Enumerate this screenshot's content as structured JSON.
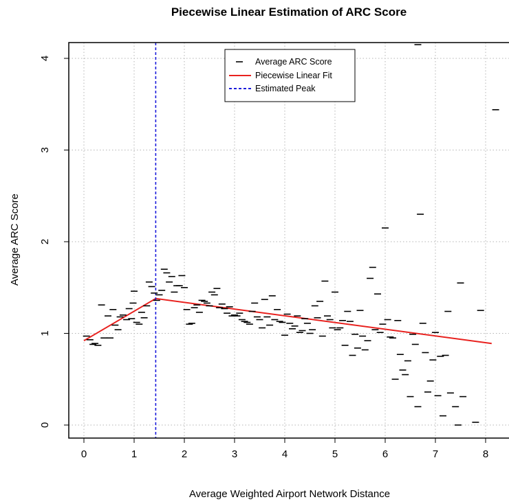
{
  "chart_data": {
    "type": "scatter",
    "title": "Piecewise Linear Estimation of ARC Score",
    "xlabel": "Average Weighted Airport Network Distance",
    "ylabel": "Average ARC Score",
    "xlim": [
      -0.3,
      8.3
    ],
    "ylim": [
      -0.1,
      4.15
    ],
    "x_ticks": [
      0,
      1,
      2,
      3,
      4,
      5,
      6,
      7,
      8
    ],
    "y_ticks": [
      0,
      1,
      2,
      3,
      4
    ],
    "grid": true,
    "legend_position": "top-center",
    "legend": [
      {
        "label": "Average ARC Score",
        "style": "dash-marker",
        "color": "#000000"
      },
      {
        "label": "Piecewise Linear Fit",
        "style": "line",
        "color": "#e8211e"
      },
      {
        "label": "Estimated Peak",
        "style": "dashed-line",
        "color": "#1a1adb"
      }
    ],
    "estimated_peak_x": 1.43,
    "fit_line": {
      "x": [
        0,
        1.43,
        8.12
      ],
      "y": [
        0.92,
        1.38,
        0.89
      ],
      "color": "#e8211e"
    },
    "series": [
      {
        "name": "Average ARC Score",
        "color": "#000000",
        "points": [
          [
            0.05,
            0.97
          ],
          [
            0.12,
            0.93
          ],
          [
            0.18,
            0.88
          ],
          [
            0.22,
            0.89
          ],
          [
            0.28,
            0.87
          ],
          [
            0.35,
            1.31
          ],
          [
            0.4,
            0.95
          ],
          [
            0.48,
            1.19
          ],
          [
            0.52,
            0.95
          ],
          [
            0.58,
            1.26
          ],
          [
            0.62,
            1.09
          ],
          [
            0.68,
            1.04
          ],
          [
            0.72,
            1.18
          ],
          [
            0.78,
            1.2
          ],
          [
            0.85,
            1.15
          ],
          [
            0.9,
            1.27
          ],
          [
            0.95,
            1.16
          ],
          [
            0.98,
            1.33
          ],
          [
            1.0,
            1.46
          ],
          [
            1.05,
            1.12
          ],
          [
            1.1,
            1.1
          ],
          [
            1.15,
            1.23
          ],
          [
            1.2,
            1.17
          ],
          [
            1.25,
            1.3
          ],
          [
            1.3,
            1.56
          ],
          [
            1.35,
            1.51
          ],
          [
            1.4,
            1.44
          ],
          [
            1.45,
            1.36
          ],
          [
            1.5,
            1.42
          ],
          [
            1.55,
            1.47
          ],
          [
            1.6,
            1.7
          ],
          [
            1.65,
            1.66
          ],
          [
            1.7,
            1.56
          ],
          [
            1.75,
            1.62
          ],
          [
            1.8,
            1.45
          ],
          [
            1.85,
            1.52
          ],
          [
            1.9,
            1.52
          ],
          [
            1.95,
            1.63
          ],
          [
            2.0,
            1.5
          ],
          [
            2.05,
            1.26
          ],
          [
            2.1,
            1.1
          ],
          [
            2.15,
            1.11
          ],
          [
            2.2,
            1.28
          ],
          [
            2.25,
            1.31
          ],
          [
            2.3,
            1.23
          ],
          [
            2.35,
            1.36
          ],
          [
            2.4,
            1.35
          ],
          [
            2.45,
            1.33
          ],
          [
            2.5,
            1.3
          ],
          [
            2.55,
            1.45
          ],
          [
            2.6,
            1.42
          ],
          [
            2.65,
            1.49
          ],
          [
            2.7,
            1.28
          ],
          [
            2.75,
            1.32
          ],
          [
            2.8,
            1.27
          ],
          [
            2.85,
            1.22
          ],
          [
            2.9,
            1.29
          ],
          [
            2.95,
            1.19
          ],
          [
            3.0,
            1.2
          ],
          [
            3.05,
            1.19
          ],
          [
            3.1,
            1.22
          ],
          [
            3.15,
            1.15
          ],
          [
            3.2,
            1.13
          ],
          [
            3.25,
            1.12
          ],
          [
            3.3,
            1.1
          ],
          [
            3.35,
            1.24
          ],
          [
            3.4,
            1.33
          ],
          [
            3.45,
            1.18
          ],
          [
            3.5,
            1.15
          ],
          [
            3.55,
            1.06
          ],
          [
            3.6,
            1.37
          ],
          [
            3.65,
            1.18
          ],
          [
            3.7,
            1.09
          ],
          [
            3.75,
            1.41
          ],
          [
            3.8,
            1.15
          ],
          [
            3.85,
            1.26
          ],
          [
            3.9,
            1.13
          ],
          [
            3.95,
            1.12
          ],
          [
            4.0,
            0.98
          ],
          [
            4.05,
            1.21
          ],
          [
            4.1,
            1.11
          ],
          [
            4.15,
            1.05
          ],
          [
            4.2,
            1.08
          ],
          [
            4.25,
            1.19
          ],
          [
            4.3,
            1.01
          ],
          [
            4.35,
            1.03
          ],
          [
            4.4,
            1.16
          ],
          [
            4.45,
            1.11
          ],
          [
            4.5,
            1.0
          ],
          [
            4.55,
            1.04
          ],
          [
            4.6,
            1.3
          ],
          [
            4.65,
            1.17
          ],
          [
            4.7,
            1.35
          ],
          [
            4.75,
            0.97
          ],
          [
            4.8,
            1.57
          ],
          [
            4.85,
            1.19
          ],
          [
            4.9,
            1.15
          ],
          [
            4.95,
            1.06
          ],
          [
            5.0,
            1.45
          ],
          [
            5.05,
            1.04
          ],
          [
            5.1,
            1.06
          ],
          [
            5.15,
            1.14
          ],
          [
            5.2,
            0.87
          ],
          [
            5.25,
            1.24
          ],
          [
            5.3,
            1.13
          ],
          [
            5.35,
            0.76
          ],
          [
            5.4,
            0.99
          ],
          [
            5.45,
            0.84
          ],
          [
            5.5,
            1.25
          ],
          [
            5.55,
            0.97
          ],
          [
            5.6,
            0.82
          ],
          [
            5.65,
            0.92
          ],
          [
            5.7,
            1.6
          ],
          [
            5.75,
            1.72
          ],
          [
            5.8,
            1.04
          ],
          [
            5.85,
            1.43
          ],
          [
            5.9,
            1.01
          ],
          [
            5.95,
            1.1
          ],
          [
            6.0,
            2.15
          ],
          [
            6.05,
            1.15
          ],
          [
            6.1,
            0.96
          ],
          [
            6.15,
            0.95
          ],
          [
            6.2,
            0.5
          ],
          [
            6.25,
            1.14
          ],
          [
            6.3,
            0.77
          ],
          [
            6.35,
            0.6
          ],
          [
            6.4,
            0.55
          ],
          [
            6.45,
            0.7
          ],
          [
            6.5,
            0.31
          ],
          [
            6.55,
            0.99
          ],
          [
            6.6,
            0.88
          ],
          [
            6.65,
            0.2
          ],
          [
            6.7,
            2.3
          ],
          [
            6.75,
            1.11
          ],
          [
            6.8,
            0.79
          ],
          [
            6.85,
            0.36
          ],
          [
            6.9,
            0.48
          ],
          [
            6.95,
            0.71
          ],
          [
            7.0,
            1.01
          ],
          [
            7.05,
            0.32
          ],
          [
            7.1,
            0.75
          ],
          [
            7.15,
            0.1
          ],
          [
            7.2,
            0.76
          ],
          [
            7.25,
            1.24
          ],
          [
            7.3,
            0.35
          ],
          [
            7.4,
            0.2
          ],
          [
            7.45,
            0.0
          ],
          [
            7.5,
            1.55
          ],
          [
            7.55,
            0.31
          ],
          [
            7.8,
            0.03
          ],
          [
            7.9,
            1.25
          ],
          [
            8.2,
            3.44
          ],
          [
            6.65,
            4.15
          ]
        ]
      }
    ]
  }
}
